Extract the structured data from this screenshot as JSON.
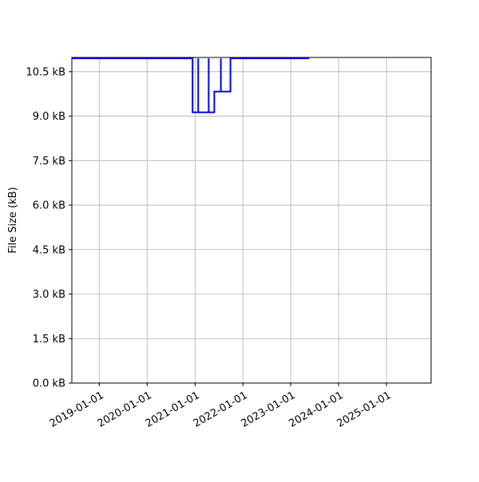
{
  "chart_data": {
    "type": "line",
    "step": "post",
    "title": "",
    "xlabel": "",
    "ylabel": "File Size (kB)",
    "xlim": [
      "2018-06-06",
      "2025-12-07"
    ],
    "ylim": [
      0,
      10.98
    ],
    "grid": true,
    "line_color": "#0000ff",
    "x_ticks": [
      "2019-01-01",
      "2020-01-01",
      "2021-01-01",
      "2022-01-01",
      "2023-01-01",
      "2024-01-01",
      "2025-01-01"
    ],
    "y_ticks": [
      0,
      1.5,
      3.0,
      4.5,
      6.0,
      7.5,
      9.0,
      10.5
    ],
    "y_tick_labels": [
      "0.0 kB",
      "1.5 kB",
      "3.0 kB",
      "4.5 kB",
      "6.0 kB",
      "7.5 kB",
      "9.0 kB",
      "10.5 kB"
    ],
    "series": [
      {
        "points": [
          [
            "2018-06-06",
            10.95
          ],
          [
            "2020-12-13",
            9.13
          ],
          [
            "2021-01-25",
            10.95
          ],
          [
            "2021-01-25",
            9.13
          ],
          [
            "2021-04-15",
            10.95
          ],
          [
            "2021-04-15",
            9.13
          ],
          [
            "2021-05-28",
            9.83
          ],
          [
            "2021-07-17",
            10.95
          ],
          [
            "2021-07-17",
            9.83
          ],
          [
            "2021-09-28",
            10.95
          ],
          [
            "2023-05-22",
            10.95
          ]
        ]
      }
    ]
  }
}
